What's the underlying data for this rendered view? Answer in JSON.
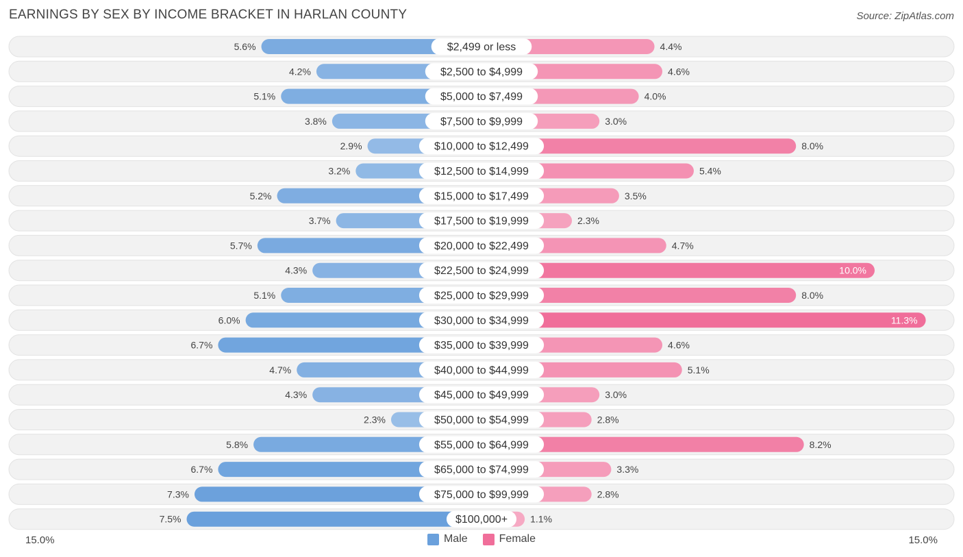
{
  "chart_data": {
    "type": "bar",
    "orientation": "horizontal-diverging",
    "title": "EARNINGS BY SEX BY INCOME BRACKET IN HARLAN COUNTY",
    "source": "Source: ZipAtlas.com",
    "categories": [
      "$2,499 or less",
      "$2,500 to $4,999",
      "$5,000 to $7,499",
      "$7,500 to $9,999",
      "$10,000 to $12,499",
      "$12,500 to $14,999",
      "$15,000 to $17,499",
      "$17,500 to $19,999",
      "$20,000 to $22,499",
      "$22,500 to $24,999",
      "$25,000 to $29,999",
      "$30,000 to $34,999",
      "$35,000 to $39,999",
      "$40,000 to $44,999",
      "$45,000 to $49,999",
      "$50,000 to $54,999",
      "$55,000 to $64,999",
      "$65,000 to $74,999",
      "$75,000 to $99,999",
      "$100,000+"
    ],
    "series": [
      {
        "name": "Male",
        "color": "#6aa0dc",
        "values": [
          5.6,
          4.2,
          5.1,
          3.8,
          2.9,
          3.2,
          5.2,
          3.7,
          5.7,
          4.3,
          5.1,
          6.0,
          6.7,
          4.7,
          4.3,
          2.3,
          5.8,
          6.7,
          7.3,
          7.5
        ],
        "labels": [
          "5.6%",
          "4.2%",
          "5.1%",
          "3.8%",
          "2.9%",
          "3.2%",
          "5.2%",
          "3.7%",
          "5.7%",
          "4.3%",
          "5.1%",
          "6.0%",
          "6.7%",
          "4.7%",
          "4.3%",
          "2.3%",
          "5.8%",
          "6.7%",
          "7.3%",
          "7.5%"
        ]
      },
      {
        "name": "Female",
        "color": "#f06e9a",
        "values": [
          4.4,
          4.6,
          4.0,
          3.0,
          8.0,
          5.4,
          3.5,
          2.3,
          4.7,
          10.0,
          8.0,
          11.3,
          4.6,
          5.1,
          3.0,
          2.8,
          8.2,
          3.3,
          2.8,
          1.1
        ],
        "labels": [
          "4.4%",
          "4.6%",
          "4.0%",
          "3.0%",
          "8.0%",
          "5.4%",
          "3.5%",
          "2.3%",
          "4.7%",
          "10.0%",
          "8.0%",
          "11.3%",
          "4.6%",
          "5.1%",
          "3.0%",
          "2.8%",
          "8.2%",
          "3.3%",
          "2.8%",
          "1.1%"
        ]
      }
    ],
    "xlim": [
      -15.0,
      15.0
    ],
    "axis_labels": {
      "left": "15.0%",
      "right": "15.0%"
    },
    "legend": [
      {
        "label": "Male",
        "color": "#6aa0dc"
      },
      {
        "label": "Female",
        "color": "#f06e9a"
      }
    ]
  }
}
